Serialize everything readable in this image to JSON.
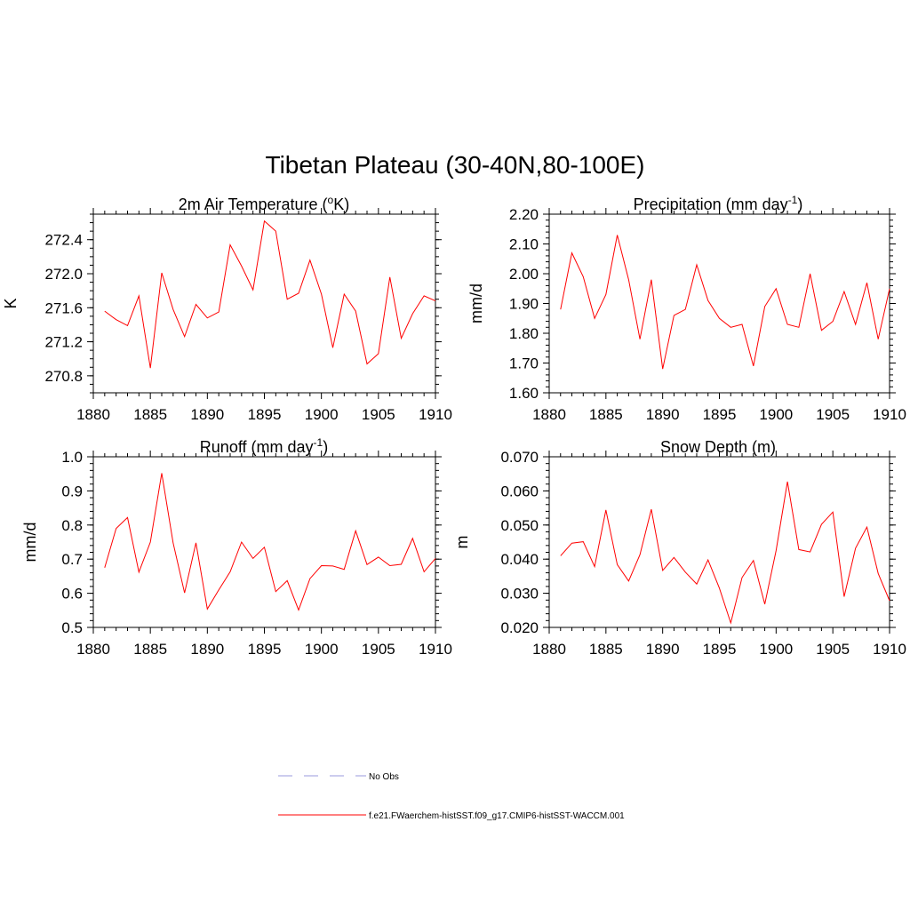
{
  "title": "Tibetan Plateau (30-40N,80-100E)",
  "legend": [
    {
      "label": "No Obs",
      "color": "#9999dd",
      "dash": "dashed"
    },
    {
      "label": "f.e21.FWaerchem-histSST.f09_g17.CMIP6-histSST-WACCM.001",
      "color": "#ff0000",
      "dash": "solid"
    }
  ],
  "chart_data": [
    {
      "type": "line",
      "title": "2m Air Temperature (",
      "title_sup": "o",
      "title_after": "K)",
      "ylabel": "K",
      "xlim": [
        1880,
        1910
      ],
      "ylim": [
        270.6,
        272.7
      ],
      "xticks": [
        1880,
        1885,
        1890,
        1895,
        1900,
        1905,
        1910
      ],
      "xtick_labels": [
        "1880",
        "1885",
        "1890",
        "1895",
        "1900",
        "1905",
        "1910"
      ],
      "yticks": [
        270.8,
        271.2,
        271.6,
        272.0,
        272.4
      ],
      "ytick_labels": [
        "270.8",
        "271.2",
        "271.6",
        "272.0",
        "272.4"
      ],
      "yminor_step": 0.1,
      "series": [
        {
          "color": "#ff0000",
          "x": [
            1881,
            1882,
            1883,
            1884,
            1885,
            1886,
            1887,
            1888,
            1889,
            1890,
            1891,
            1892,
            1893,
            1894,
            1895,
            1896,
            1897,
            1898,
            1899,
            1900,
            1901,
            1902,
            1903,
            1904,
            1905,
            1906,
            1907,
            1908,
            1909,
            1910
          ],
          "y": [
            271.56,
            271.46,
            271.39,
            271.74,
            270.89,
            272.01,
            271.58,
            271.26,
            271.64,
            271.48,
            271.55,
            272.34,
            272.09,
            271.81,
            272.62,
            272.5,
            271.7,
            271.77,
            272.16,
            271.76,
            271.13,
            271.76,
            271.56,
            270.94,
            271.06,
            271.96,
            271.24,
            271.53,
            271.74,
            271.68
          ]
        }
      ]
    },
    {
      "type": "line",
      "title": "Precipitation (mm day",
      "title_sup": "-1",
      "title_after": ")",
      "ylabel": "mm/d",
      "xlim": [
        1880,
        1910
      ],
      "ylim": [
        1.6,
        2.2
      ],
      "xticks": [
        1880,
        1885,
        1890,
        1895,
        1900,
        1905,
        1910
      ],
      "xtick_labels": [
        "1880",
        "1885",
        "1890",
        "1895",
        "1900",
        "1905",
        "1910"
      ],
      "yticks": [
        1.6,
        1.7,
        1.8,
        1.9,
        2.0,
        2.1,
        2.2
      ],
      "ytick_labels": [
        "1.60",
        "1.70",
        "1.80",
        "1.90",
        "2.00",
        "2.10",
        "2.20"
      ],
      "yminor_step": 0.02,
      "series": [
        {
          "color": "#ff0000",
          "x": [
            1881,
            1882,
            1883,
            1884,
            1885,
            1886,
            1887,
            1888,
            1889,
            1890,
            1891,
            1892,
            1893,
            1894,
            1895,
            1896,
            1897,
            1898,
            1899,
            1900,
            1901,
            1902,
            1903,
            1904,
            1905,
            1906,
            1907,
            1908,
            1909,
            1910
          ],
          "y": [
            1.88,
            2.07,
            1.99,
            1.85,
            1.93,
            2.13,
            1.98,
            1.78,
            1.98,
            1.68,
            1.86,
            1.88,
            2.03,
            1.91,
            1.85,
            1.82,
            1.83,
            1.69,
            1.89,
            1.95,
            1.83,
            1.82,
            2.0,
            1.81,
            1.84,
            1.94,
            1.83,
            1.97,
            1.78,
            1.95
          ]
        }
      ]
    },
    {
      "type": "line",
      "title": "Runoff (mm day",
      "title_sup": "-1",
      "title_after": ")",
      "ylabel": "mm/d",
      "xlim": [
        1880,
        1910
      ],
      "ylim": [
        0.5,
        1.0
      ],
      "xticks": [
        1880,
        1885,
        1890,
        1895,
        1900,
        1905,
        1910
      ],
      "xtick_labels": [
        "1880",
        "1885",
        "1890",
        "1895",
        "1900",
        "1905",
        "1910"
      ],
      "yticks": [
        0.5,
        0.6,
        0.7,
        0.8,
        0.9,
        1.0
      ],
      "ytick_labels": [
        "0.5",
        "0.6",
        "0.7",
        "0.8",
        "0.9",
        "1.0"
      ],
      "yminor_step": 0.02,
      "series": [
        {
          "color": "#ff0000",
          "x": [
            1881,
            1882,
            1883,
            1884,
            1885,
            1886,
            1887,
            1888,
            1889,
            1890,
            1891,
            1892,
            1893,
            1894,
            1895,
            1896,
            1897,
            1898,
            1899,
            1900,
            1901,
            1902,
            1903,
            1904,
            1905,
            1906,
            1907,
            1908,
            1909,
            1910
          ],
          "y": [
            0.675,
            0.79,
            0.822,
            0.662,
            0.75,
            0.952,
            0.748,
            0.601,
            0.748,
            0.554,
            0.61,
            0.663,
            0.75,
            0.702,
            0.735,
            0.605,
            0.637,
            0.551,
            0.643,
            0.681,
            0.68,
            0.67,
            0.783,
            0.684,
            0.706,
            0.681,
            0.685,
            0.761,
            0.663,
            0.702
          ]
        }
      ]
    },
    {
      "type": "line",
      "title": "Snow Depth (m)",
      "title_sup": "",
      "title_after": "",
      "ylabel": "m",
      "xlim": [
        1880,
        1910
      ],
      "ylim": [
        0.02,
        0.07
      ],
      "xticks": [
        1880,
        1885,
        1890,
        1895,
        1900,
        1905,
        1910
      ],
      "xtick_labels": [
        "1880",
        "1885",
        "1890",
        "1895",
        "1900",
        "1905",
        "1910"
      ],
      "yticks": [
        0.02,
        0.03,
        0.04,
        0.05,
        0.06,
        0.07
      ],
      "ytick_labels": [
        "0.020",
        "0.030",
        "0.040",
        "0.050",
        "0.060",
        "0.070"
      ],
      "yminor_step": 0.002,
      "series": [
        {
          "color": "#ff0000",
          "x": [
            1881,
            1882,
            1883,
            1884,
            1885,
            1886,
            1887,
            1888,
            1889,
            1890,
            1891,
            1892,
            1893,
            1894,
            1895,
            1896,
            1897,
            1898,
            1899,
            1900,
            1901,
            1902,
            1903,
            1904,
            1905,
            1906,
            1907,
            1908,
            1909,
            1910
          ],
          "y": [
            0.041,
            0.0447,
            0.0451,
            0.0378,
            0.0544,
            0.0384,
            0.0336,
            0.0413,
            0.0546,
            0.0367,
            0.0405,
            0.0362,
            0.0327,
            0.0398,
            0.0315,
            0.0213,
            0.0346,
            0.0396,
            0.0268,
            0.0425,
            0.0627,
            0.0428,
            0.0421,
            0.0502,
            0.0538,
            0.029,
            0.0432,
            0.0494,
            0.0358,
            0.0278
          ]
        }
      ]
    }
  ]
}
